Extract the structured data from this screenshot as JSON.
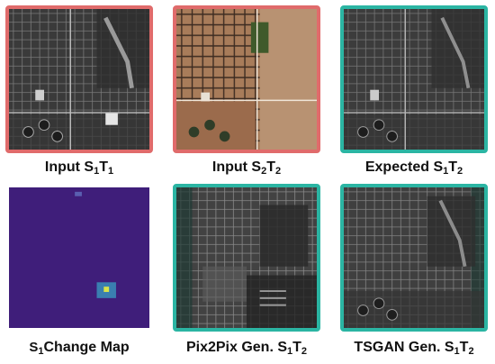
{
  "panels": [
    {
      "caption_prefix": "Input ",
      "caption_main": "S",
      "sub1": "1",
      "mid": "T",
      "sub2": "1",
      "border": "#e06b6b",
      "style": "sar"
    },
    {
      "caption_prefix": "Input ",
      "caption_main": "S",
      "sub1": "2",
      "mid": "T",
      "sub2": "2",
      "border": "#e06b6b",
      "style": "optical"
    },
    {
      "caption_prefix": "Expected ",
      "caption_main": "S",
      "sub1": "1",
      "mid": "T",
      "sub2": "2",
      "border": "#2bb5a3",
      "style": "sar"
    },
    {
      "caption_prefix": "",
      "caption_main": "S",
      "sub1": "1",
      "mid": "Change Map",
      "sub2": "",
      "border": "none",
      "style": "change-map"
    },
    {
      "caption_prefix": "Pix2Pix Gen. ",
      "caption_main": "S",
      "sub1": "1",
      "mid": "T",
      "sub2": "2",
      "border": "#2bb5a3",
      "style": "sar-generated"
    },
    {
      "caption_prefix": "TSGAN Gen. ",
      "caption_main": "S",
      "sub1": "1",
      "mid": "T",
      "sub2": "2",
      "border": "#2bb5a3",
      "style": "sar-generated"
    }
  ]
}
